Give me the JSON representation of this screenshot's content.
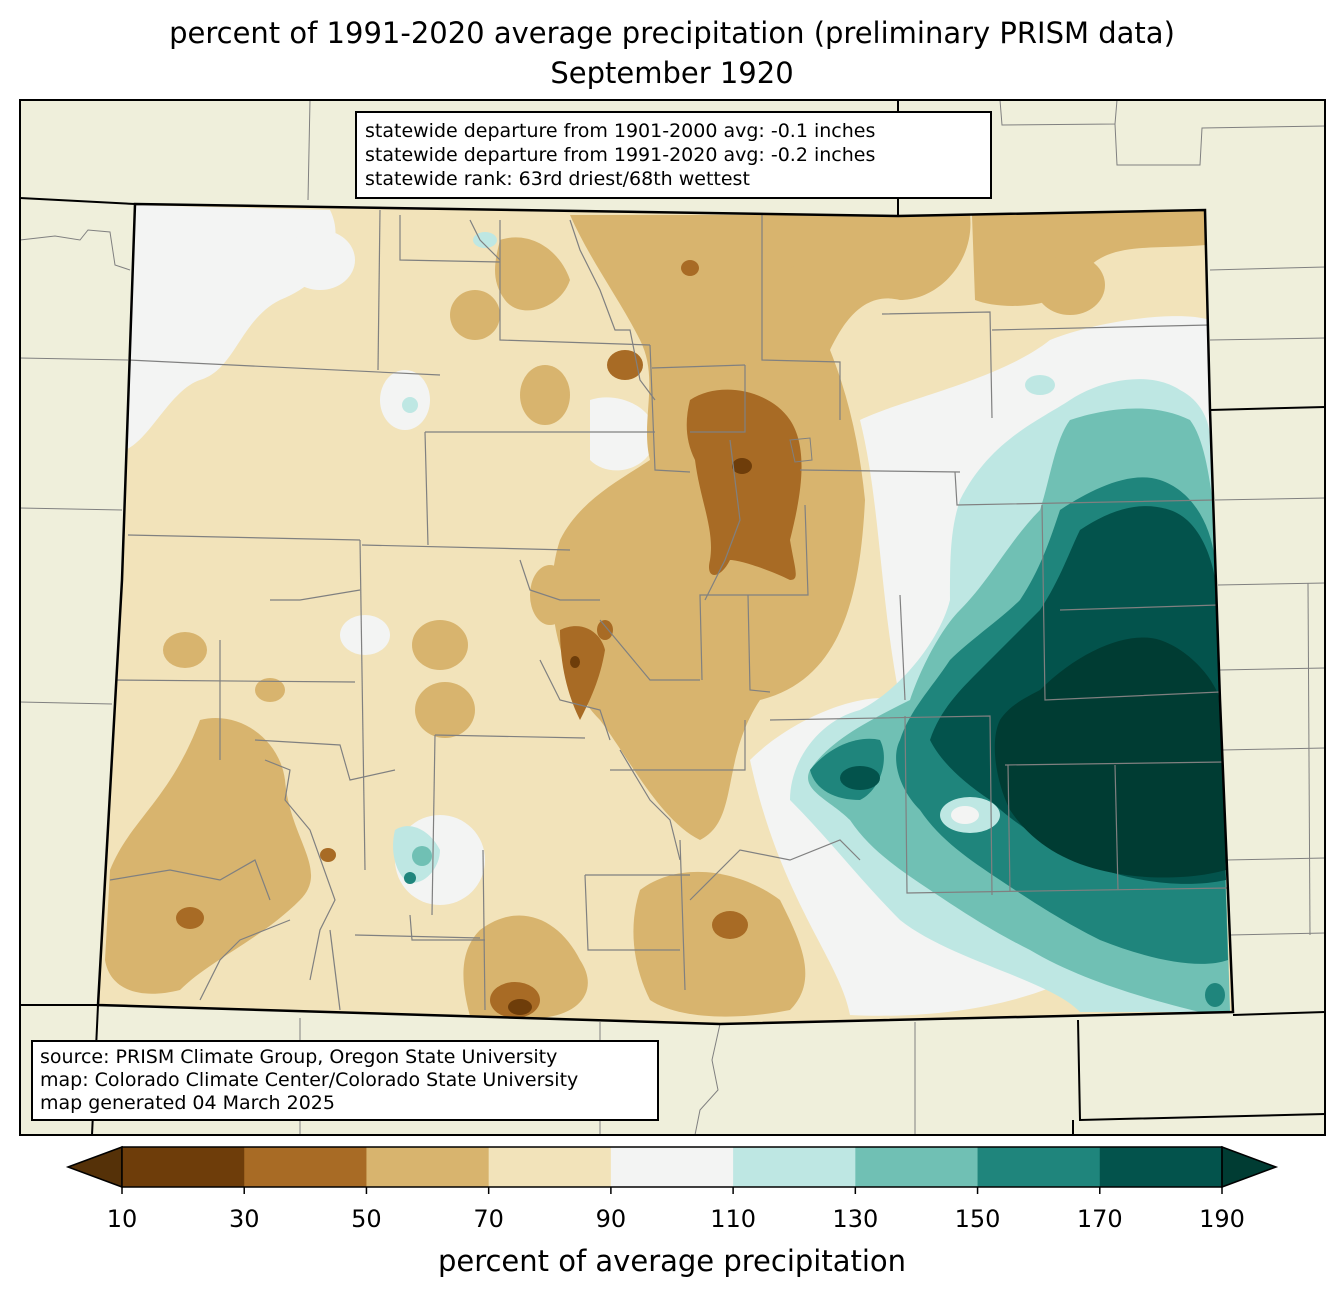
{
  "title": {
    "line1": "percent of 1991-2020 average precipitation (preliminary PRISM data)",
    "line2": "September 1920"
  },
  "stats": {
    "dep_1901_2000": "statewide departure from 1901-2000 avg: -0.1 inches",
    "dep_1991_2020": "statewide departure from 1991-2020 avg: -0.2 inches",
    "rank": "statewide rank: 63rd driest/68th wettest"
  },
  "source": {
    "line1": "source: PRISM Climate Group, Oregon State University",
    "line2": "map: Colorado Climate Center/Colorado State University",
    "line3": "map generated 04 March 2025"
  },
  "colorbar": {
    "label": "percent of average precipitation",
    "ticks": [
      "10",
      "30",
      "50",
      "70",
      "90",
      "110",
      "130",
      "150",
      "170",
      "190"
    ],
    "colors": [
      "#6e3d0a",
      "#a86b25",
      "#d8b46e",
      "#f2e3ba",
      "#f3f4f3",
      "#bee7e3",
      "#70c0b4",
      "#1f857c",
      "#03534c"
    ],
    "under_color": "#553108",
    "over_color": "#003c33"
  },
  "map": {
    "background": "#efefdb",
    "colors": {
      "c10": "#6e3d0a",
      "c30": "#a86b25",
      "c50": "#d8b46e",
      "c70": "#f2e3ba",
      "c90": "#f3f4f3",
      "c110": "#bee7e3",
      "c130": "#70c0b4",
      "c150": "#1f857c",
      "c170": "#03534c",
      "c190": "#003c33"
    }
  }
}
